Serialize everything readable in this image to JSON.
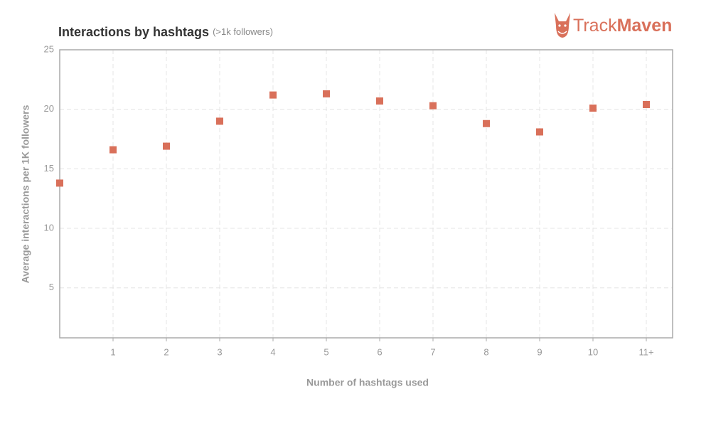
{
  "chart_data": {
    "type": "scatter",
    "title": "Interactions by hashtags",
    "subtitle": "(>1k followers)",
    "xlabel": "Number of hashtags used",
    "ylabel": "Average interactions per 1K followers",
    "categories": [
      null,
      "1",
      "2",
      "3",
      "4",
      "5",
      "6",
      "7",
      "8",
      "9",
      "10",
      "11+"
    ],
    "values": [
      13.8,
      16.6,
      16.9,
      19.0,
      21.2,
      21.3,
      20.7,
      20.3,
      18.8,
      18.1,
      20.1,
      20.4
    ],
    "color": "#d9705a",
    "ylim": [
      0.8,
      25
    ],
    "yticks": [
      5,
      10,
      15,
      20,
      25
    ],
    "grid": true
  },
  "logo": {
    "part1": "Track",
    "part2": "Maven"
  }
}
